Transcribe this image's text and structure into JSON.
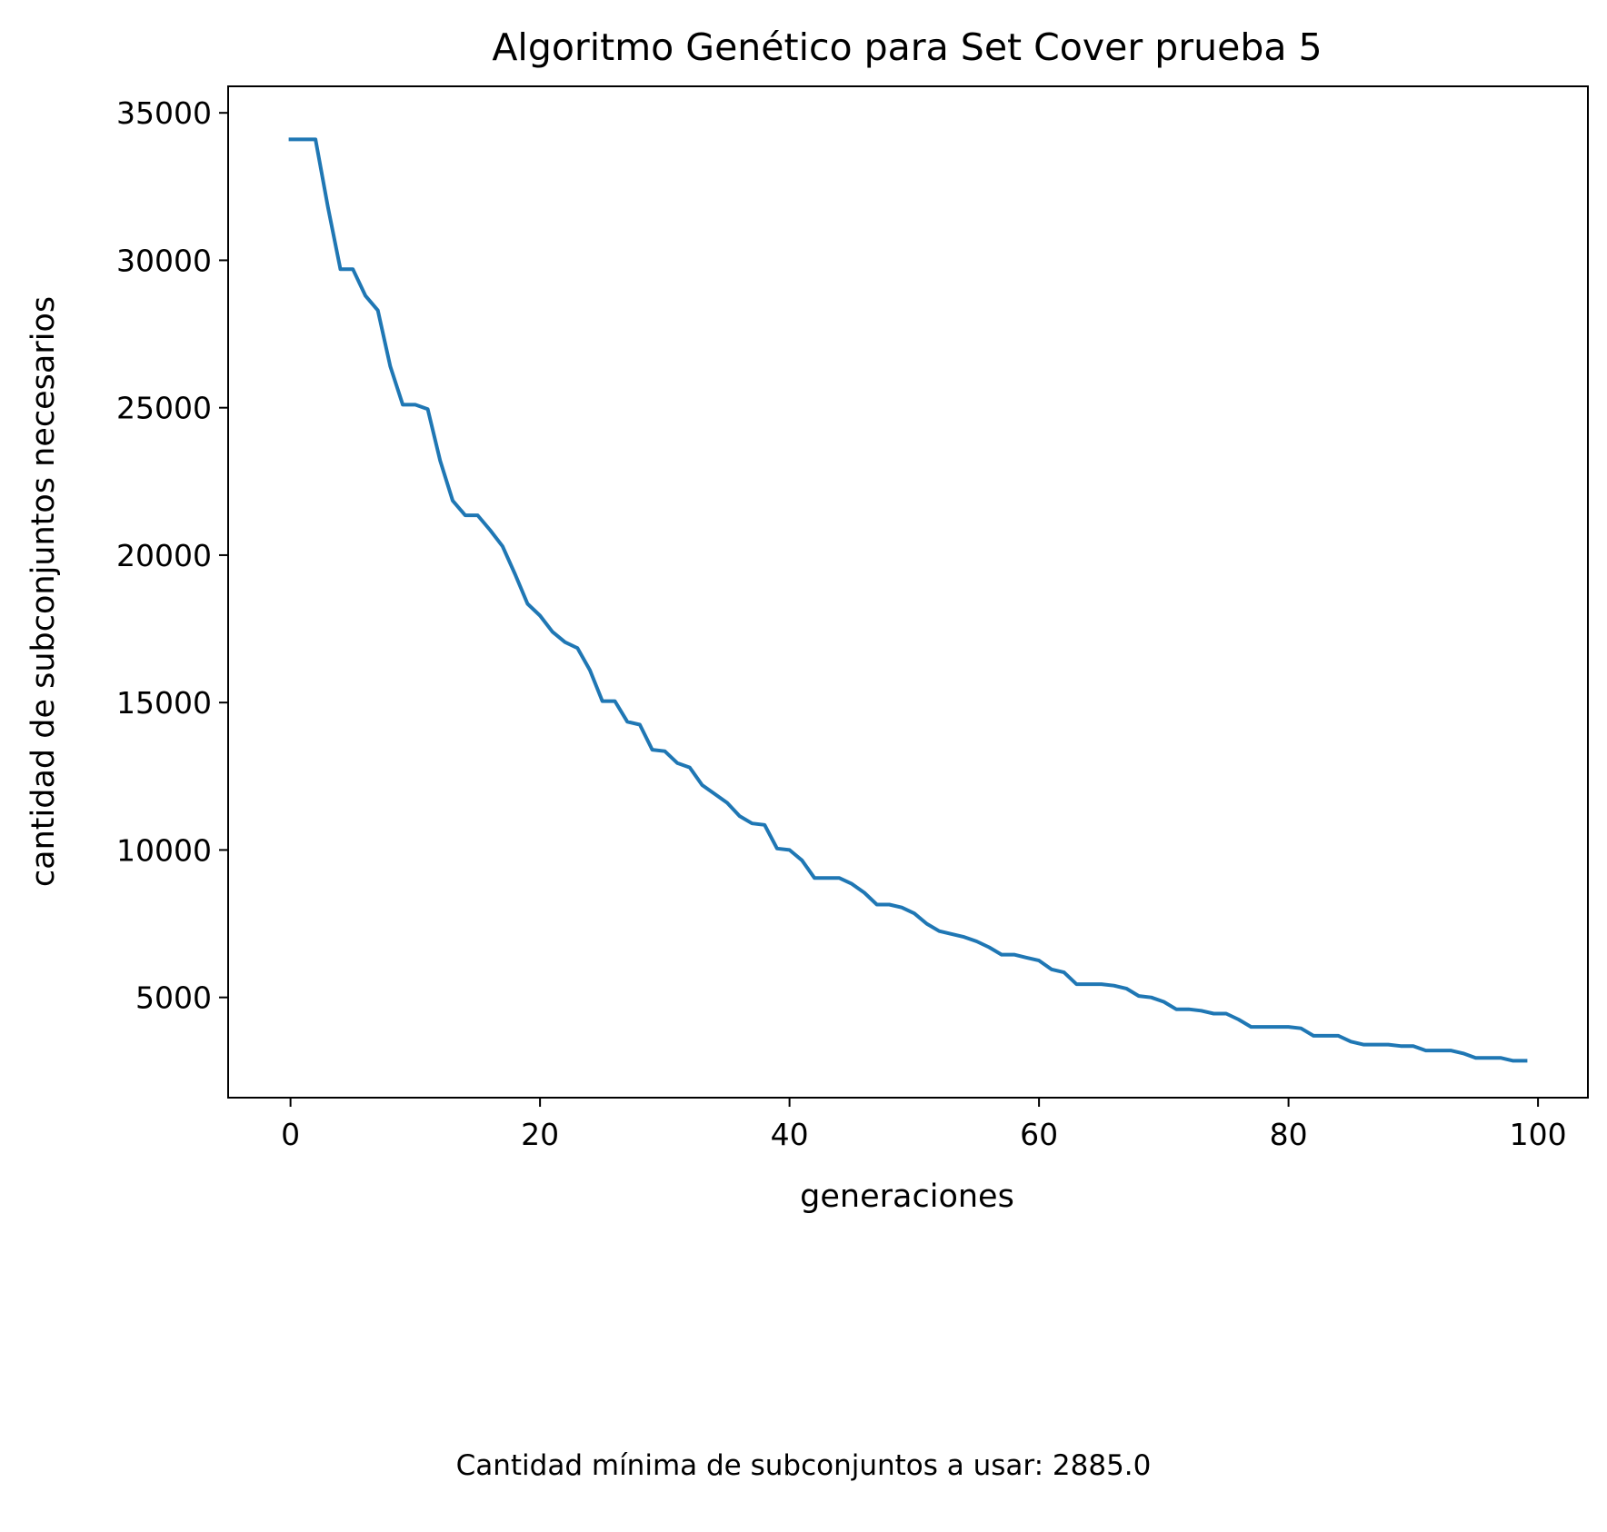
{
  "chart_data": {
    "type": "line",
    "title": "Algoritmo Genético para Set Cover prueba 5",
    "xlabel": "generaciones",
    "ylabel": "cantidad de subconjuntos necesarios",
    "xlim": [
      -5,
      104
    ],
    "ylim": [
      1600,
      35900
    ],
    "xticks": [
      0,
      20,
      40,
      60,
      80,
      100
    ],
    "yticks": [
      5000,
      10000,
      15000,
      20000,
      25000,
      30000,
      35000
    ],
    "grid": false,
    "legend": "none",
    "series": [
      {
        "color": "#1f77b4",
        "x": [
          0,
          1,
          2,
          3,
          4,
          5,
          6,
          7,
          8,
          9,
          10,
          11,
          12,
          13,
          14,
          15,
          16,
          17,
          18,
          19,
          20,
          21,
          22,
          23,
          24,
          25,
          26,
          27,
          28,
          29,
          30,
          31,
          32,
          33,
          34,
          35,
          36,
          37,
          38,
          39,
          40,
          41,
          42,
          43,
          44,
          45,
          46,
          47,
          48,
          49,
          50,
          51,
          52,
          53,
          54,
          55,
          56,
          57,
          58,
          59,
          60,
          61,
          62,
          63,
          64,
          65,
          66,
          67,
          68,
          69,
          70,
          71,
          72,
          73,
          74,
          75,
          76,
          77,
          78,
          79,
          80,
          81,
          82,
          83,
          84,
          85,
          86,
          87,
          88,
          89,
          90,
          91,
          92,
          93,
          94,
          95,
          96,
          97,
          98,
          99
        ],
        "values": [
          34100,
          34100,
          34100,
          31800,
          29700,
          29700,
          28800,
          28300,
          26400,
          25100,
          25100,
          24950,
          23200,
          21850,
          21350,
          21350,
          20850,
          20300,
          19350,
          18350,
          17950,
          17400,
          17050,
          16850,
          16100,
          15050,
          15050,
          14350,
          14250,
          13400,
          13350,
          12950,
          12800,
          12200,
          11900,
          11600,
          11150,
          10900,
          10850,
          10050,
          10000,
          9650,
          9050,
          9050,
          9050,
          8850,
          8550,
          8150,
          8150,
          8050,
          7850,
          7500,
          7250,
          7150,
          7050,
          6900,
          6700,
          6450,
          6450,
          6350,
          6250,
          5950,
          5850,
          5450,
          5450,
          5450,
          5400,
          5300,
          5050,
          5000,
          4850,
          4600,
          4600,
          4550,
          4450,
          4450,
          4250,
          4000,
          4000,
          4000,
          4000,
          3950,
          3700,
          3700,
          3700,
          3500,
          3400,
          3400,
          3400,
          3350,
          3350,
          3200,
          3200,
          3200,
          3100,
          2950,
          2950,
          2950,
          2850,
          2850
        ]
      }
    ]
  },
  "footer": {
    "note": "Cantidad mínima de subconjuntos a usar: 2885.0"
  }
}
